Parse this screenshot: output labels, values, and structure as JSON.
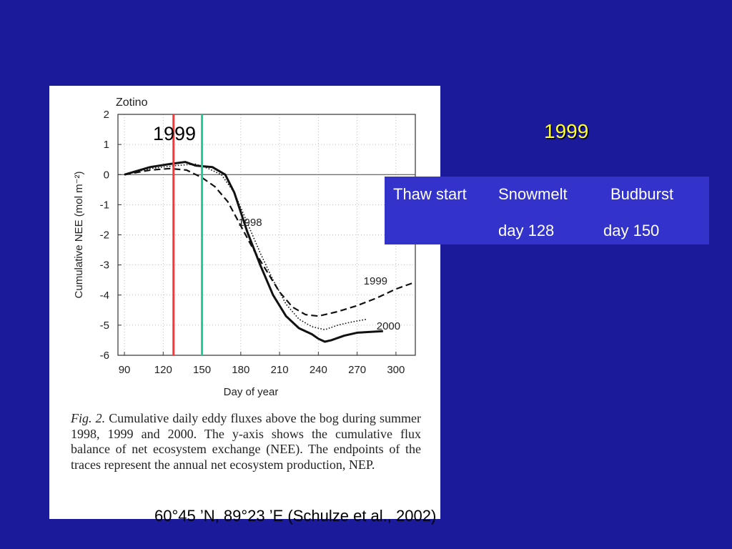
{
  "chart_data": {
    "type": "line",
    "title": "Zotino",
    "xlabel": "Day of year",
    "ylabel": "Cumulative NEE (mol m⁻²)",
    "xlim": [
      85,
      315
    ],
    "ylim": [
      -6,
      2
    ],
    "xticks": [
      90,
      120,
      150,
      180,
      210,
      240,
      270,
      300
    ],
    "yticks": [
      2,
      1,
      0,
      -1,
      -2,
      -3,
      -4,
      -5,
      -6
    ],
    "grid": true,
    "series": [
      {
        "name": "1998",
        "style": "dotted",
        "x": [
          90,
          110,
          130,
          145,
          155,
          165,
          175,
          185,
          195,
          205,
          215,
          225,
          235,
          245,
          255,
          265,
          278
        ],
        "y": [
          0,
          0.2,
          0.3,
          0.35,
          0.2,
          0.0,
          -0.6,
          -1.6,
          -2.6,
          -3.5,
          -4.3,
          -4.8,
          -5.05,
          -5.15,
          -5.0,
          -4.9,
          -4.8
        ]
      },
      {
        "name": "1999",
        "style": "dashed",
        "x": [
          90,
          110,
          125,
          138,
          150,
          160,
          170,
          180,
          190,
          200,
          210,
          220,
          230,
          240,
          255,
          270,
          285,
          300,
          313
        ],
        "y": [
          0,
          0.15,
          0.2,
          0.15,
          -0.1,
          -0.4,
          -0.9,
          -1.7,
          -2.5,
          -3.2,
          -3.9,
          -4.4,
          -4.65,
          -4.7,
          -4.55,
          -4.35,
          -4.1,
          -3.8,
          -3.6
        ]
      },
      {
        "name": "2000",
        "style": "solid",
        "x": [
          90,
          110,
          125,
          137,
          145,
          150,
          158,
          168,
          175,
          185,
          195,
          205,
          215,
          225,
          235,
          240,
          245,
          250,
          260,
          270,
          290
        ],
        "y": [
          0,
          0.25,
          0.35,
          0.42,
          0.3,
          0.28,
          0.25,
          0.0,
          -0.6,
          -1.9,
          -3.0,
          -4.0,
          -4.7,
          -5.1,
          -5.3,
          -5.45,
          -5.55,
          -5.5,
          -5.35,
          -5.25,
          -5.2
        ]
      }
    ],
    "series_labels": [
      {
        "text": "1998",
        "x": 178,
        "y": -1.7
      },
      {
        "text": "1999",
        "x": 275,
        "y": -3.65
      },
      {
        "text": "2000",
        "x": 285,
        "y": -5.15
      }
    ],
    "vlines": [
      {
        "x": 128,
        "color": "#ff3333"
      },
      {
        "x": 150,
        "color": "#22cc99"
      }
    ]
  },
  "figure": {
    "caption_label": "Fig. 2.",
    "caption_text": " Cumulative daily eddy fluxes above the bog during summer 1998, 1999 and 2000. The y-axis shows the cumulative flux balance of net ecosystem exchange (NEE). The endpoints of the traces represent the annual net ecosystem production, NEP."
  },
  "annotations": {
    "year_left": "1999",
    "year_right": "1999"
  },
  "events": {
    "thaw": "Thaw start",
    "snowmelt": "Snowmelt",
    "budburst": "Budburst",
    "snowmelt_day": "day 128",
    "budburst_day": "day 150"
  },
  "footer": "60°45 ’N, 89°23 ’E   (Schulze et al., 2002)",
  "colors": {
    "background": "#1a1a9a",
    "events_box": "#3333cc",
    "highlight_year": "#ffff33"
  }
}
